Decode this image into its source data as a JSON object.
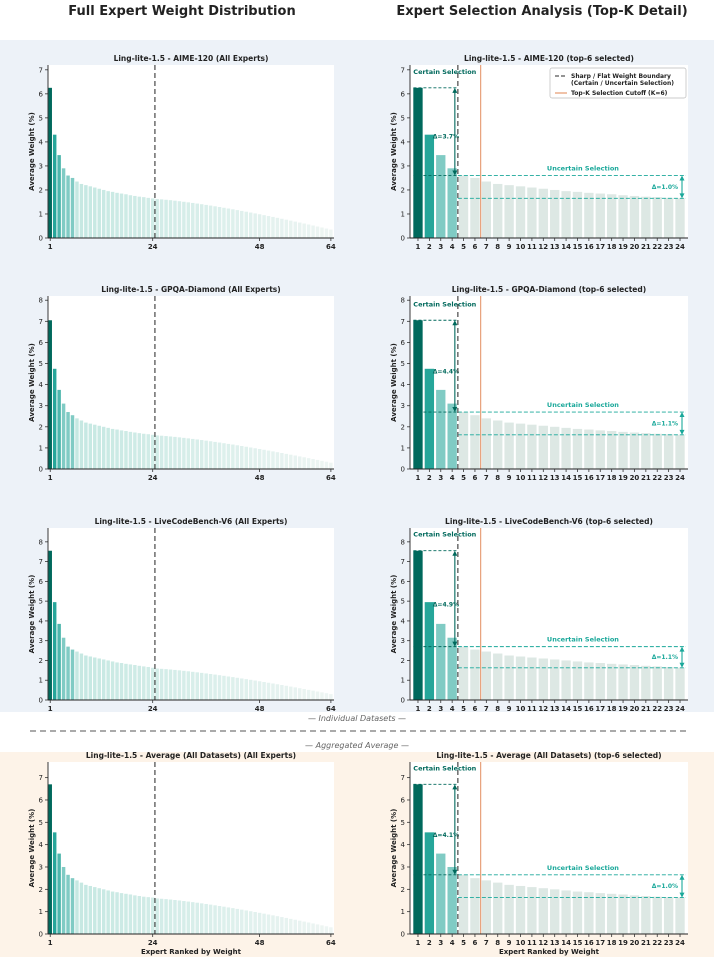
{
  "column_titles": [
    "Full Expert Weight Distribution",
    "Expert Selection Analysis (Top-K Detail)"
  ],
  "section_labels": {
    "individual": "— Individual Datasets —",
    "aggregated": "— Aggregated Average —"
  },
  "colors": {
    "dark": "#00695c",
    "mid": "#26a69a",
    "light": "#80cbc4",
    "pale": "#c5e8e2",
    "grey": "#dde8e4",
    "cutoff": "#e8a07a",
    "boundary": "#555555",
    "annot": "#1aa89a",
    "annot_dark": "#00695c",
    "band_individual": "#edf2f8",
    "band_aggregate": "#fdf3e8"
  },
  "legend": {
    "boundary": [
      "Sharp / Flat Weight Boundary",
      "(Certain / Uncertain Selection)"
    ],
    "cutoff": "Top-K Selection Cutoff (K=6)"
  },
  "annotation_labels": {
    "certain": "Certain Selection",
    "uncertain": "Uncertain Selection"
  },
  "chart_data": [
    {
      "type": "bar",
      "view": "full",
      "title": "Ling-lite-1.5 - AIME-120 (All Experts)",
      "xlabel": "",
      "ylabel": "Average Weight (%)",
      "xticks": [
        1,
        24,
        48,
        64
      ],
      "yticks": [
        0,
        1,
        2,
        3,
        4,
        5,
        6,
        7
      ],
      "ylim": [
        0,
        7.2
      ],
      "boundary_x": 24.5,
      "top": [
        6.25,
        4.3,
        3.45,
        2.9,
        2.6,
        2.5,
        2.35,
        2.25,
        2.2,
        2.15,
        2.1,
        2.05,
        2.0,
        1.95,
        1.92,
        1.88,
        1.85,
        1.82,
        1.78,
        1.75,
        1.72,
        1.7,
        1.67,
        1.65
      ],
      "tail_start": 1.63,
      "tail_end": 0.35
    },
    {
      "type": "bar",
      "view": "topk",
      "title": "Ling-lite-1.5 - AIME-120 (top-6 selected)",
      "xlabel": "",
      "ylabel": "Average Weight (%)",
      "categories": [
        1,
        2,
        3,
        4,
        5,
        6,
        7,
        8,
        9,
        10,
        11,
        12,
        13,
        14,
        15,
        16,
        17,
        18,
        19,
        20,
        21,
        22,
        23,
        24
      ],
      "values": [
        6.25,
        4.3,
        3.45,
        2.9,
        2.6,
        2.5,
        2.35,
        2.25,
        2.2,
        2.15,
        2.1,
        2.05,
        2.0,
        1.95,
        1.92,
        1.88,
        1.85,
        1.82,
        1.78,
        1.75,
        1.72,
        1.7,
        1.67,
        1.65
      ],
      "yticks": [
        0,
        1,
        2,
        3,
        4,
        5,
        6,
        7
      ],
      "ylim": [
        0,
        7.2
      ],
      "boundary_x": 4.5,
      "cutoff_x": 6.5,
      "certain_gap": {
        "top": 6.25,
        "bottom": 2.6,
        "label": "Δ=3.7%"
      },
      "uncertain_gap": {
        "top": 2.6,
        "bottom": 1.65,
        "label": "Δ=1.0%"
      },
      "show_legend": true
    },
    {
      "type": "bar",
      "view": "full",
      "title": "Ling-lite-1.5 - GPQA-Diamond (All Experts)",
      "xlabel": "",
      "ylabel": "Average Weight (%)",
      "xticks": [
        1,
        24,
        48,
        64
      ],
      "yticks": [
        0,
        1,
        2,
        3,
        4,
        5,
        6,
        7,
        8
      ],
      "ylim": [
        0,
        8.2
      ],
      "boundary_x": 24.5,
      "top": [
        7.05,
        4.75,
        3.75,
        3.1,
        2.7,
        2.55,
        2.4,
        2.3,
        2.2,
        2.15,
        2.1,
        2.05,
        2.0,
        1.95,
        1.9,
        1.87,
        1.83,
        1.8,
        1.76,
        1.73,
        1.7,
        1.67,
        1.65,
        1.62
      ],
      "tail_start": 1.6,
      "tail_end": 0.3
    },
    {
      "type": "bar",
      "view": "topk",
      "title": "Ling-lite-1.5 - GPQA-Diamond (top-6 selected)",
      "xlabel": "",
      "ylabel": "Average Weight (%)",
      "categories": [
        1,
        2,
        3,
        4,
        5,
        6,
        7,
        8,
        9,
        10,
        11,
        12,
        13,
        14,
        15,
        16,
        17,
        18,
        19,
        20,
        21,
        22,
        23,
        24
      ],
      "values": [
        7.05,
        4.75,
        3.75,
        3.1,
        2.7,
        2.55,
        2.4,
        2.3,
        2.2,
        2.15,
        2.1,
        2.05,
        2.0,
        1.95,
        1.9,
        1.87,
        1.83,
        1.8,
        1.76,
        1.73,
        1.7,
        1.67,
        1.65,
        1.62
      ],
      "yticks": [
        0,
        1,
        2,
        3,
        4,
        5,
        6,
        7,
        8
      ],
      "ylim": [
        0,
        8.2
      ],
      "boundary_x": 4.5,
      "cutoff_x": 6.5,
      "certain_gap": {
        "top": 7.05,
        "bottom": 2.7,
        "label": "Δ=4.4%"
      },
      "uncertain_gap": {
        "top": 2.7,
        "bottom": 1.62,
        "label": "Δ=1.1%"
      },
      "show_legend": false
    },
    {
      "type": "bar",
      "view": "full",
      "title": "Ling-lite-1.5 - LiveCodeBench-V6 (All Experts)",
      "xlabel": "",
      "ylabel": "Average Weight (%)",
      "xticks": [
        1,
        24,
        48,
        64
      ],
      "yticks": [
        0,
        1,
        2,
        3,
        4,
        5,
        6,
        7,
        8
      ],
      "ylim": [
        0,
        8.7
      ],
      "boundary_x": 24.5,
      "top": [
        7.55,
        4.95,
        3.85,
        3.15,
        2.7,
        2.55,
        2.45,
        2.35,
        2.25,
        2.2,
        2.15,
        2.1,
        2.05,
        2.0,
        1.95,
        1.9,
        1.87,
        1.83,
        1.8,
        1.77,
        1.73,
        1.7,
        1.67,
        1.63
      ],
      "tail_start": 1.6,
      "tail_end": 0.3
    },
    {
      "type": "bar",
      "view": "topk",
      "title": "Ling-lite-1.5 - LiveCodeBench-V6 (top-6 selected)",
      "xlabel": "",
      "ylabel": "Average Weight (%)",
      "categories": [
        1,
        2,
        3,
        4,
        5,
        6,
        7,
        8,
        9,
        10,
        11,
        12,
        13,
        14,
        15,
        16,
        17,
        18,
        19,
        20,
        21,
        22,
        23,
        24
      ],
      "values": [
        7.55,
        4.95,
        3.85,
        3.15,
        2.7,
        2.55,
        2.45,
        2.35,
        2.25,
        2.2,
        2.15,
        2.1,
        2.05,
        2.0,
        1.95,
        1.9,
        1.87,
        1.83,
        1.8,
        1.77,
        1.73,
        1.7,
        1.67,
        1.63
      ],
      "yticks": [
        0,
        1,
        2,
        3,
        4,
        5,
        6,
        7,
        8
      ],
      "ylim": [
        0,
        8.7
      ],
      "boundary_x": 4.5,
      "cutoff_x": 6.5,
      "certain_gap": {
        "top": 7.55,
        "bottom": 2.7,
        "label": "Δ=4.9%"
      },
      "uncertain_gap": {
        "top": 2.7,
        "bottom": 1.63,
        "label": "Δ=1.1%"
      },
      "show_legend": false
    },
    {
      "type": "bar",
      "view": "full",
      "title": "Ling-lite-1.5 - Average (All Datasets) (All Experts)",
      "xlabel": "Expert Ranked by Weight",
      "ylabel": "Average Weight (%)",
      "xticks": [
        1,
        24,
        48,
        64
      ],
      "yticks": [
        0,
        1,
        2,
        3,
        4,
        5,
        6,
        7
      ],
      "ylim": [
        0,
        7.7
      ],
      "boundary_x": 24.5,
      "top": [
        6.7,
        4.55,
        3.6,
        3.0,
        2.65,
        2.5,
        2.4,
        2.3,
        2.2,
        2.15,
        2.1,
        2.05,
        2.0,
        1.95,
        1.9,
        1.87,
        1.83,
        1.8,
        1.77,
        1.73,
        1.7,
        1.67,
        1.65,
        1.63
      ],
      "tail_start": 1.6,
      "tail_end": 0.3
    },
    {
      "type": "bar",
      "view": "topk",
      "title": "Ling-lite-1.5 - Average (All Datasets) (top-6 selected)",
      "xlabel": "Expert Ranked by Weight",
      "ylabel": "Average Weight (%)",
      "categories": [
        1,
        2,
        3,
        4,
        5,
        6,
        7,
        8,
        9,
        10,
        11,
        12,
        13,
        14,
        15,
        16,
        17,
        18,
        19,
        20,
        21,
        22,
        23,
        24
      ],
      "values": [
        6.7,
        4.55,
        3.6,
        3.0,
        2.65,
        2.5,
        2.4,
        2.3,
        2.2,
        2.15,
        2.1,
        2.05,
        2.0,
        1.95,
        1.9,
        1.87,
        1.83,
        1.8,
        1.77,
        1.73,
        1.7,
        1.67,
        1.65,
        1.63
      ],
      "yticks": [
        0,
        1,
        2,
        3,
        4,
        5,
        6,
        7
      ],
      "ylim": [
        0,
        7.7
      ],
      "boundary_x": 4.5,
      "cutoff_x": 6.5,
      "certain_gap": {
        "top": 6.7,
        "bottom": 2.65,
        "label": "Δ=4.1%"
      },
      "uncertain_gap": {
        "top": 2.65,
        "bottom": 1.63,
        "label": "Δ=1.0%"
      },
      "show_legend": false
    }
  ]
}
